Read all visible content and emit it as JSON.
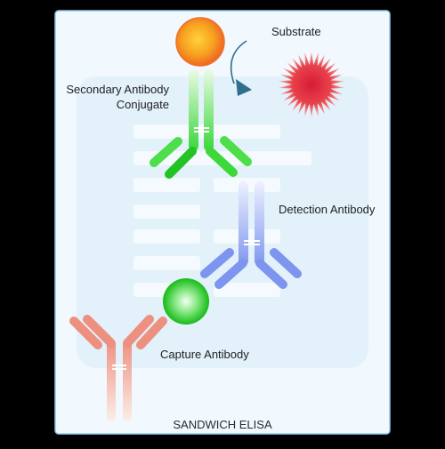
{
  "title": "SANDWICH ELISA",
  "labels": {
    "substrate": "Substrate",
    "secondary_line1": "Secondary Antibody",
    "secondary_line2": "Conjugate",
    "detection": "Detection Antibody",
    "capture": "Capture Antibody"
  },
  "colors": {
    "page_background": "#000000",
    "card_background": "#f1f9fe",
    "card_border": "#8ec9ea",
    "inner_panel": "#e2f1fa",
    "secondary_antibody": "#39d839",
    "detection_antibody": "#7e95ef",
    "capture_antibody": "#ee907f",
    "enzyme_sphere": "#f7a21e",
    "substrate_burst": "#e5343f",
    "antigen_sphere": "#20c820",
    "arrow": "#2f6f8d"
  },
  "icons": {
    "reaction_arrow": "curved-arrow-icon",
    "substrate": "starburst-icon",
    "enzyme": "enzyme-sphere-icon",
    "antigen": "antigen-sphere-icon"
  }
}
